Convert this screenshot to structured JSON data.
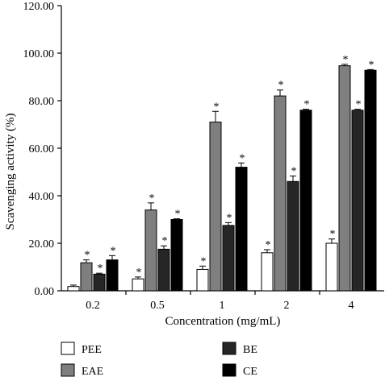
{
  "chart_data": {
    "type": "bar",
    "title": "",
    "xlabel": "Concentration (mg/mL)",
    "ylabel": "Scavenging activity (%)",
    "ylim": [
      0,
      120
    ],
    "yticks": [
      "0.00",
      "20.00",
      "40.00",
      "60.00",
      "80.00",
      "100.00",
      "120.00"
    ],
    "categories": [
      "0.2",
      "0.5",
      "1",
      "2",
      "4"
    ],
    "significance_marker": "*",
    "legend_position": "bottom",
    "grid": false,
    "series": [
      {
        "name": "PEE",
        "color": "#ffffff",
        "values": [
          1.8,
          5.0,
          9.0,
          16.0,
          20.0
        ],
        "errors": [
          0.6,
          0.8,
          1.4,
          1.3,
          1.8
        ],
        "significant": [
          false,
          true,
          true,
          true,
          true
        ]
      },
      {
        "name": "EAE",
        "color": "#7f7f7f",
        "values": [
          11.8,
          34.0,
          71.0,
          82.0,
          94.7
        ],
        "errors": [
          1.2,
          3.0,
          4.5,
          2.5,
          0.6
        ],
        "significant": [
          true,
          true,
          true,
          true,
          true
        ]
      },
      {
        "name": "BE",
        "color": "#262626",
        "values": [
          7.0,
          17.5,
          27.5,
          46.0,
          76.0
        ],
        "errors": [
          0.4,
          1.4,
          1.2,
          2.3,
          0.4
        ],
        "significant": [
          true,
          true,
          true,
          true,
          true
        ]
      },
      {
        "name": "CE",
        "color": "#000000",
        "values": [
          13.0,
          30.0,
          52.0,
          76.0,
          92.8
        ],
        "errors": [
          1.8,
          0.3,
          1.8,
          0.4,
          0.3
        ],
        "significant": [
          true,
          true,
          true,
          true,
          true
        ]
      }
    ]
  }
}
